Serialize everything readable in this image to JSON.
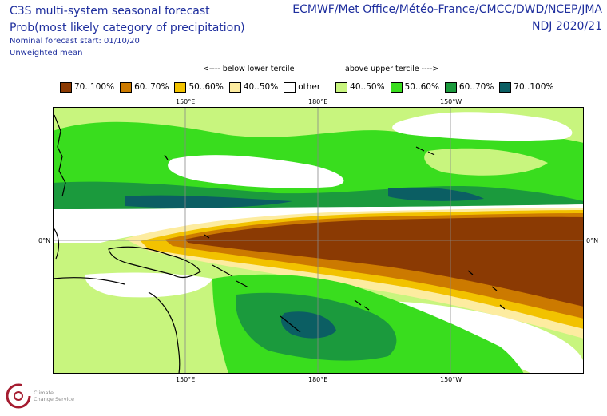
{
  "titles": {
    "line1": "C3S multi-system seasonal forecast",
    "line2": "Prob(most likely category of precipitation)",
    "line3": "Nominal forecast start: 01/10/20",
    "line4": "Unweighted mean",
    "source": "ECMWF/Met Office/Météo-France/CMCC/DWD/NCEP/JMA",
    "season": "NDJ 2020/21"
  },
  "legend": {
    "below_label": "<---- below lower tercile",
    "above_label": "above upper tercile ---->",
    "items": [
      {
        "label": "70..100%",
        "color": "#8b3a03"
      },
      {
        "label": "60..70%",
        "color": "#cc7a00"
      },
      {
        "label": "50..60%",
        "color": "#f2c200"
      },
      {
        "label": "40..50%",
        "color": "#fdeca0"
      },
      {
        "label": "other",
        "color": "#ffffff"
      },
      {
        "label": "40..50%",
        "color": "#c8f57e"
      },
      {
        "label": "50..60%",
        "color": "#39dd1e"
      },
      {
        "label": "60..70%",
        "color": "#1b9a3d"
      },
      {
        "label": "70..100%",
        "color": "#0b5e63"
      }
    ]
  },
  "axes": {
    "lon_top": [
      "150°E",
      "180°E",
      "150°W"
    ],
    "lon_bottom": [
      "150°E",
      "180°E",
      "150°W"
    ],
    "lat_left": "0°N",
    "lat_right": "0°N"
  },
  "logo": {
    "line1": "Climate",
    "line2": "Change Service"
  }
}
